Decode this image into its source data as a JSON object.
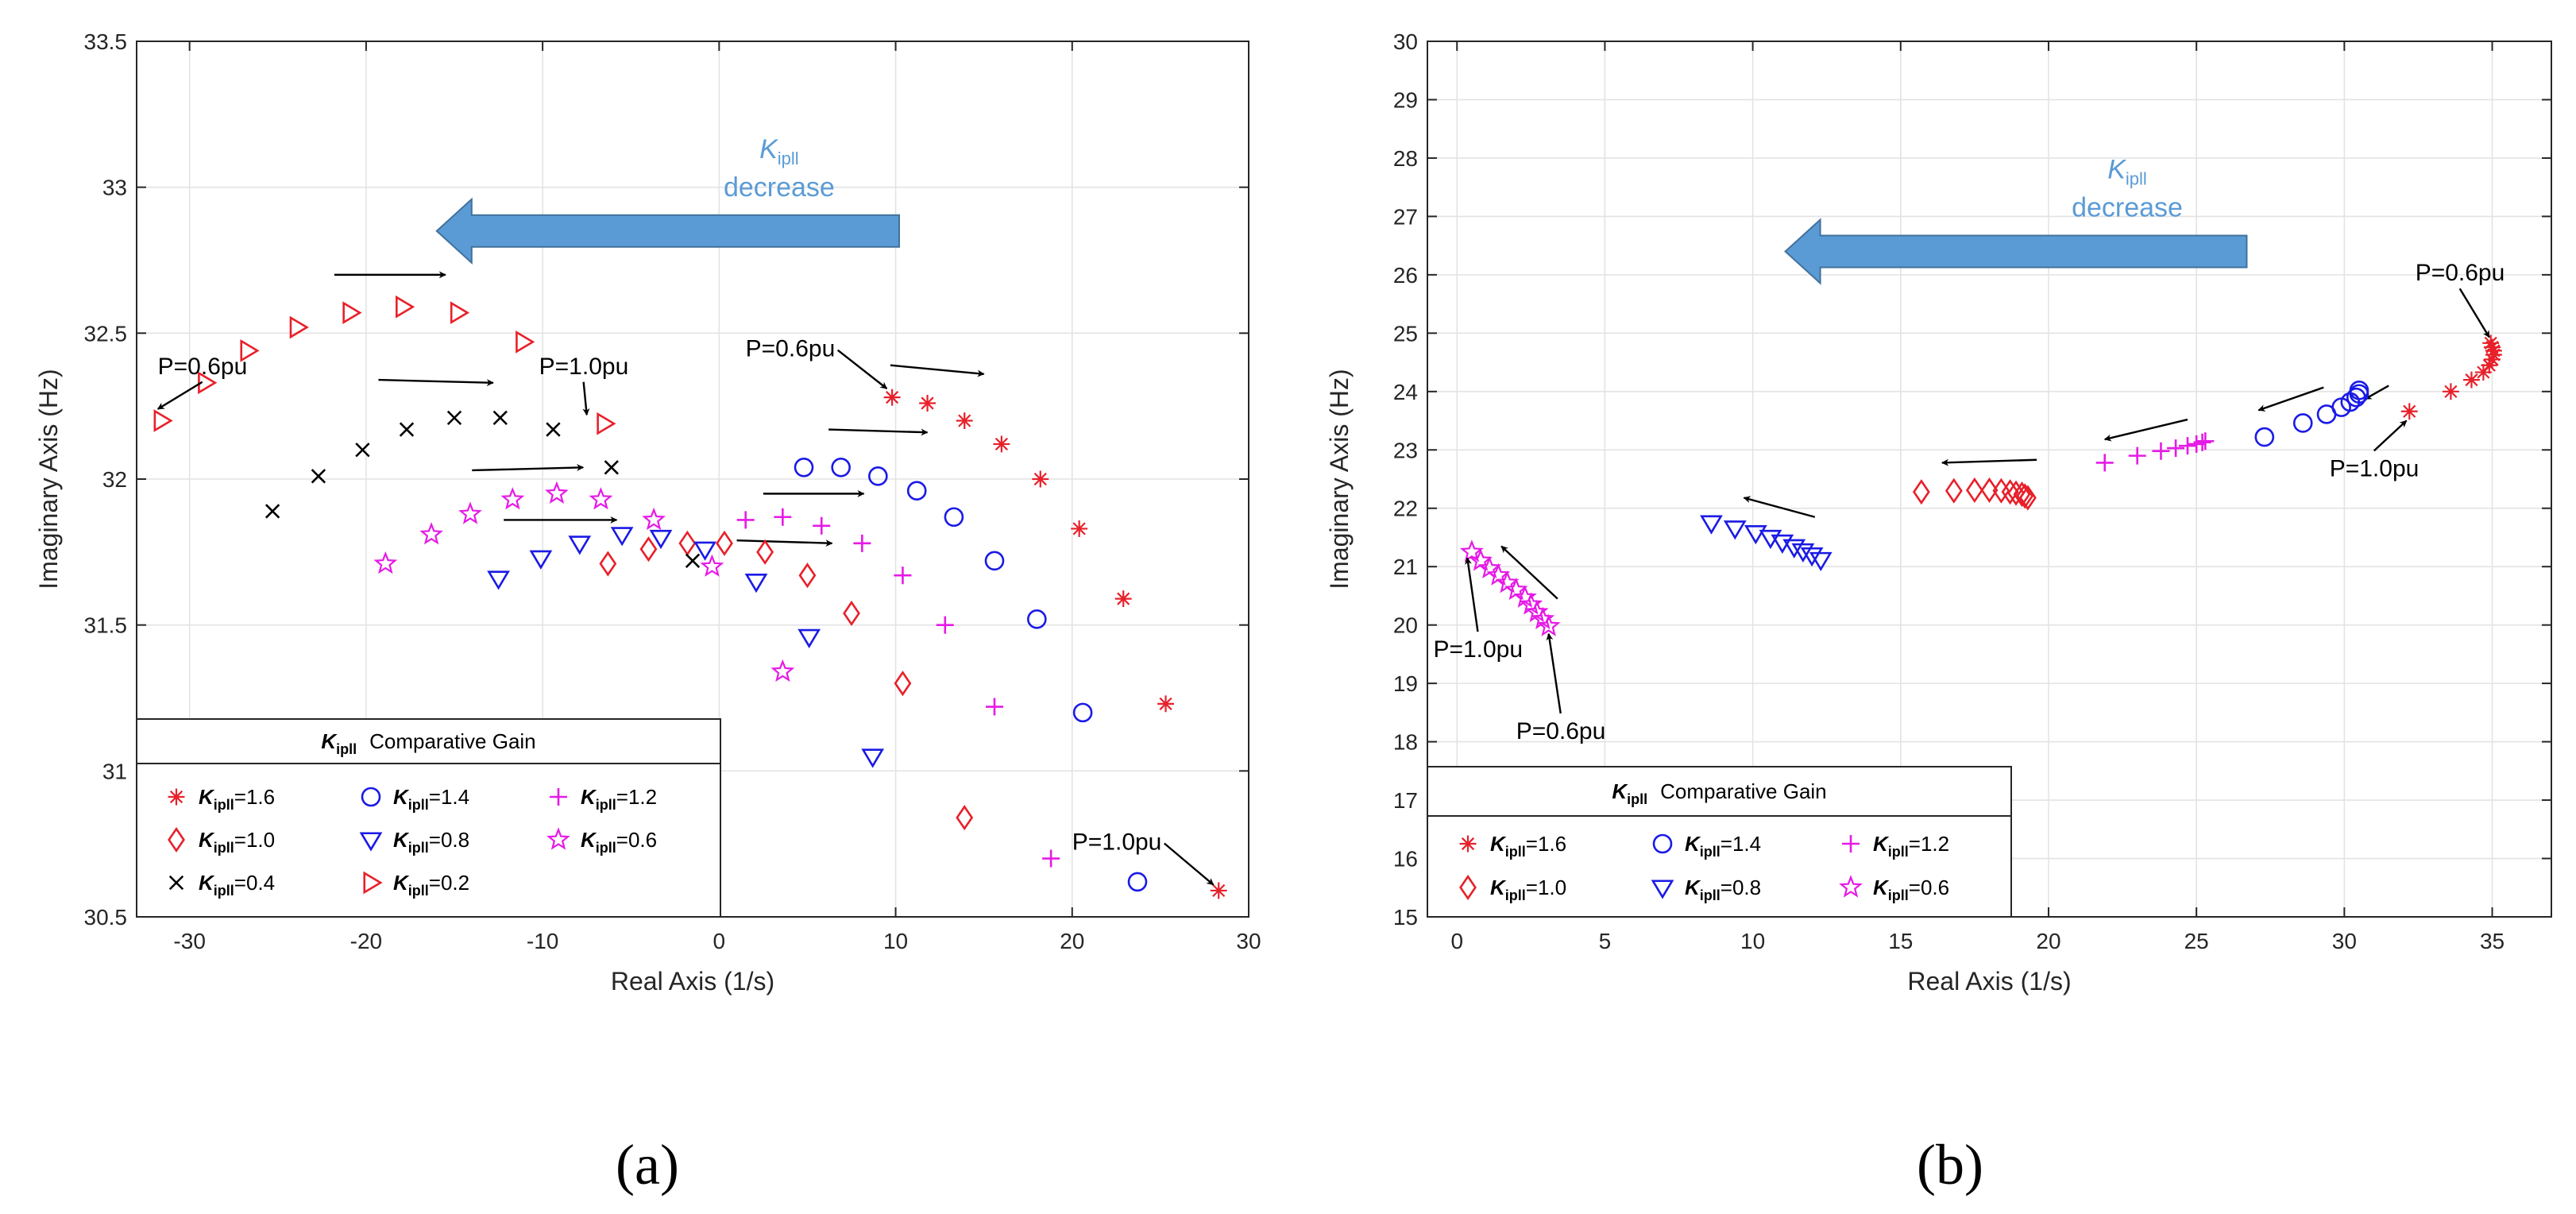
{
  "chart_data": [
    {
      "type": "scatter",
      "panel_label": "(a)",
      "title": "",
      "xlabel": "Real Axis (1/s)",
      "ylabel": "Imaginary Axis (Hz)",
      "xlim": [
        -33,
        30
      ],
      "ylim": [
        30.5,
        33.5
      ],
      "xticks": [
        -30,
        -20,
        -10,
        0,
        10,
        20,
        30
      ],
      "yticks": [
        30.5,
        31,
        31.5,
        32,
        32.5,
        33,
        33.5
      ],
      "xtick_labels": [
        "-30",
        "-20",
        "-10",
        "0",
        "10",
        "20",
        "30"
      ],
      "ytick_labels": [
        "30.5",
        "31",
        "31.5",
        "32",
        "32.5",
        "33",
        "33.5"
      ],
      "grid": true,
      "series": [
        {
          "name": "Kipll=1.6",
          "label_main": "K",
          "label_sub": "ipll",
          "label_val": "=1.6",
          "marker": "asterisk",
          "color": "#e8202a",
          "x": [
            9.8,
            11.8,
            13.9,
            16.0,
            18.2,
            20.4,
            22.9,
            25.3,
            28.3
          ],
          "y": [
            32.28,
            32.26,
            32.2,
            32.12,
            32.0,
            31.83,
            31.59,
            31.23,
            30.59
          ]
        },
        {
          "name": "Kipll=1.4",
          "label_main": "K",
          "label_sub": "ipll",
          "label_val": "=1.4",
          "marker": "circle",
          "color": "#1a1ae6",
          "x": [
            4.8,
            6.9,
            9.0,
            11.2,
            13.3,
            15.6,
            18.0,
            20.6,
            23.7
          ],
          "y": [
            32.04,
            32.04,
            32.01,
            31.96,
            31.87,
            31.72,
            31.52,
            31.2,
            30.62
          ]
        },
        {
          "name": "Kipll=1.2",
          "label_main": "K",
          "label_sub": "ipll",
          "label_val": "=1.2",
          "marker": "plus",
          "color": "#e61ae6",
          "x": [
            1.5,
            3.6,
            5.8,
            8.1,
            10.4,
            12.8,
            15.6,
            18.8
          ],
          "y": [
            31.86,
            31.87,
            31.84,
            31.78,
            31.67,
            31.5,
            31.22,
            30.7
          ]
        },
        {
          "name": "Kipll=1.0",
          "label_main": "K",
          "label_sub": "ipll",
          "label_val": "=1.0",
          "marker": "diamond",
          "color": "#e8202a",
          "x": [
            -6.3,
            -4.0,
            -1.8,
            0.3,
            2.6,
            5.0,
            7.5,
            10.4,
            13.9
          ],
          "y": [
            31.71,
            31.76,
            31.78,
            31.78,
            31.75,
            31.67,
            31.54,
            31.3,
            30.84
          ]
        },
        {
          "name": "Kipll=0.8",
          "label_main": "K",
          "label_sub": "ipll",
          "label_val": "=0.8",
          "marker": "triangle-down",
          "color": "#1a1ae6",
          "x": [
            -12.5,
            -10.1,
            -7.9,
            -5.5,
            -3.3,
            -0.8,
            2.1,
            5.1,
            8.7
          ],
          "y": [
            31.66,
            31.73,
            31.78,
            31.81,
            31.8,
            31.76,
            31.65,
            31.46,
            31.05
          ]
        },
        {
          "name": "Kipll=0.6",
          "label_main": "K",
          "label_sub": "ipll",
          "label_val": "=0.6",
          "marker": "star",
          "color": "#e61ae6",
          "x": [
            -18.9,
            -16.3,
            -14.1,
            -11.7,
            -9.2,
            -6.7,
            -3.7,
            -0.4,
            3.6
          ],
          "y": [
            31.71,
            31.81,
            31.88,
            31.93,
            31.95,
            31.93,
            31.86,
            31.7,
            31.34
          ]
        },
        {
          "name": "Kipll=0.4",
          "label_main": "K",
          "label_sub": "ipll",
          "label_val": "=0.4",
          "marker": "x",
          "color": "#000000",
          "x": [
            -25.3,
            -22.7,
            -20.2,
            -17.7,
            -15.0,
            -12.4,
            -9.4,
            -6.1,
            -1.5
          ],
          "y": [
            31.89,
            32.01,
            32.1,
            32.17,
            32.21,
            32.21,
            32.17,
            32.04,
            31.72
          ]
        },
        {
          "name": "Kipll=0.2",
          "label_main": "K",
          "label_sub": "ipll",
          "label_val": "=0.2",
          "marker": "triangle-right",
          "color": "#e8202a",
          "x": [
            -31.6,
            -29.1,
            -26.7,
            -23.9,
            -20.9,
            -17.9,
            -14.8,
            -11.1,
            -6.5
          ],
          "y": [
            32.2,
            32.33,
            32.44,
            32.52,
            32.57,
            32.59,
            32.57,
            32.47,
            32.19
          ]
        }
      ],
      "legend": {
        "title_main": "K",
        "title_sub": "ipll",
        "title_rest": "Comparative Gain",
        "position": "lower-left",
        "columns": 3
      },
      "annotations": [
        {
          "text": "P=0.6pu",
          "x": -31.8,
          "y": 32.36,
          "arrow_to": [
            -31.8,
            32.24
          ]
        },
        {
          "text": "P=1.0pu",
          "x": -10.2,
          "y": 32.36,
          "arrow_to": [
            -7.5,
            32.22
          ]
        },
        {
          "text": "P=0.6pu",
          "x": 1.5,
          "y": 32.42,
          "arrow_to": [
            9.5,
            32.31
          ]
        },
        {
          "text": "P=1.0pu",
          "x": 20.0,
          "y": 30.73,
          "arrow_to": [
            28.0,
            30.61
          ]
        }
      ],
      "direction_arrows": [
        {
          "from": [
            -21.8,
            32.7
          ],
          "to": [
            -15.5,
            32.7
          ]
        },
        {
          "from": [
            -19.3,
            32.34
          ],
          "to": [
            -12.8,
            32.33
          ]
        },
        {
          "from": [
            -14.0,
            32.03
          ],
          "to": [
            -7.7,
            32.04
          ]
        },
        {
          "from": [
            -12.2,
            31.86
          ],
          "to": [
            -5.8,
            31.86
          ]
        },
        {
          "from": [
            1.0,
            31.79
          ],
          "to": [
            6.4,
            31.78
          ]
        },
        {
          "from": [
            2.5,
            31.95
          ],
          "to": [
            8.2,
            31.95
          ]
        },
        {
          "from": [
            6.2,
            32.17
          ],
          "to": [
            11.8,
            32.16
          ]
        },
        {
          "from": [
            9.7,
            32.39
          ],
          "to": [
            15.0,
            32.36
          ]
        }
      ],
      "big_arrow": {
        "label_main": "K",
        "label_sub": "ipll",
        "label_line2": "decrease",
        "from_x": 10.2,
        "to_x": -16.0,
        "y": 32.85,
        "color": "#5b9bd5"
      }
    },
    {
      "type": "scatter",
      "panel_label": "(b)",
      "title": "",
      "xlabel": "Real Axis (1/s)",
      "ylabel": "Imaginary Axis (Hz)",
      "xlim": [
        -1,
        37
      ],
      "ylim": [
        15,
        30
      ],
      "xticks": [
        0,
        5,
        10,
        15,
        20,
        25,
        30,
        35
      ],
      "yticks": [
        15,
        16,
        17,
        18,
        19,
        20,
        21,
        22,
        23,
        24,
        25,
        26,
        27,
        28,
        29,
        30
      ],
      "xtick_labels": [
        "0",
        "5",
        "10",
        "15",
        "20",
        "25",
        "30",
        "35"
      ],
      "ytick_labels": [
        "15",
        "16",
        "17",
        "18",
        "19",
        "20",
        "21",
        "22",
        "23",
        "24",
        "25",
        "26",
        "27",
        "28",
        "29",
        "30"
      ],
      "grid": true,
      "series": [
        {
          "name": "Kipll=1.6",
          "label_main": "K",
          "label_sub": "ipll",
          "label_val": "=1.6",
          "marker": "asterisk",
          "color": "#e8202a",
          "x": [
            32.2,
            33.6,
            34.3,
            34.7,
            34.9,
            35.0,
            35.05,
            35.05,
            35.0,
            34.95
          ],
          "y": [
            23.66,
            24.0,
            24.2,
            24.33,
            24.45,
            24.55,
            24.63,
            24.7,
            24.76,
            24.83
          ]
        },
        {
          "name": "Kipll=1.4",
          "label_main": "K",
          "label_sub": "ipll",
          "label_val": "=1.4",
          "marker": "circle",
          "color": "#1a1ae6",
          "x": [
            27.3,
            28.6,
            29.4,
            29.9,
            30.2,
            30.4,
            30.5,
            30.5
          ],
          "y": [
            23.22,
            23.46,
            23.61,
            23.73,
            23.82,
            23.9,
            23.96,
            24.02
          ]
        },
        {
          "name": "Kipll=1.2",
          "label_main": "K",
          "label_sub": "ipll",
          "label_val": "=1.2",
          "marker": "plus",
          "color": "#e61ae6",
          "x": [
            21.9,
            23.0,
            23.8,
            24.3,
            24.7,
            25.0,
            25.2,
            25.3
          ],
          "y": [
            22.78,
            22.9,
            22.98,
            23.03,
            23.07,
            23.1,
            23.13,
            23.15
          ]
        },
        {
          "name": "Kipll=1.0",
          "label_main": "K",
          "label_sub": "ipll",
          "label_val": "=1.0",
          "marker": "diamond",
          "color": "#e8202a",
          "x": [
            15.7,
            16.8,
            17.5,
            18.0,
            18.4,
            18.7,
            18.9,
            19.1,
            19.2,
            19.3
          ],
          "y": [
            22.28,
            22.3,
            22.31,
            22.31,
            22.3,
            22.28,
            22.26,
            22.24,
            22.21,
            22.18
          ]
        },
        {
          "name": "Kipll=0.8",
          "label_main": "K",
          "label_sub": "ipll",
          "label_val": "=0.8",
          "marker": "triangle-down",
          "color": "#1a1ae6",
          "x": [
            8.6,
            9.4,
            10.1,
            10.6,
            11.0,
            11.4,
            11.7,
            12.0,
            12.3
          ],
          "y": [
            21.75,
            21.66,
            21.58,
            21.5,
            21.42,
            21.34,
            21.27,
            21.2,
            21.12
          ]
        },
        {
          "name": "Kipll=0.6",
          "label_main": "K",
          "label_sub": "ipll",
          "label_val": "=0.6",
          "marker": "star",
          "color": "#e61ae6",
          "x": [
            0.5,
            0.8,
            1.1,
            1.4,
            1.7,
            2.0,
            2.3,
            2.5,
            2.7,
            2.9,
            3.1
          ],
          "y": [
            21.25,
            21.1,
            20.97,
            20.85,
            20.72,
            20.6,
            20.47,
            20.35,
            20.22,
            20.1,
            19.98
          ]
        }
      ],
      "legend": {
        "title_main": "K",
        "title_sub": "ipll",
        "title_rest": "Comparative Gain",
        "position": "lower-left",
        "columns": 3
      },
      "annotations": [
        {
          "text": "P=0.6pu",
          "x": 32.4,
          "y": 25.9,
          "arrow_to": [
            34.9,
            24.93
          ]
        },
        {
          "text": "P=1.0pu",
          "x": 29.5,
          "y": 22.55,
          "arrow_to": [
            32.1,
            23.5
          ]
        },
        {
          "text": "P=1.0pu",
          "x": -0.8,
          "y": 19.45,
          "arrow_to": [
            0.35,
            21.15
          ]
        },
        {
          "text": "P=0.6pu",
          "x": 2.0,
          "y": 18.05,
          "arrow_to": [
            3.1,
            19.85
          ]
        }
      ],
      "direction_arrows": [
        {
          "from": [
            3.4,
            20.45
          ],
          "to": [
            1.5,
            21.35
          ]
        },
        {
          "from": [
            12.1,
            21.85
          ],
          "to": [
            9.7,
            22.18
          ]
        },
        {
          "from": [
            19.6,
            22.83
          ],
          "to": [
            16.4,
            22.78
          ]
        },
        {
          "from": [
            24.7,
            23.52
          ],
          "to": [
            21.9,
            23.18
          ]
        },
        {
          "from": [
            29.3,
            24.07
          ],
          "to": [
            27.1,
            23.68
          ]
        },
        {
          "from": [
            31.5,
            24.1
          ],
          "to": [
            30.7,
            23.87
          ]
        }
      ],
      "big_arrow": {
        "label_main": "K",
        "label_sub": "ipll",
        "label_line2": "decrease",
        "from_x": 26.7,
        "to_x": 11.1,
        "y": 26.4,
        "color": "#5b9bd5"
      }
    }
  ]
}
